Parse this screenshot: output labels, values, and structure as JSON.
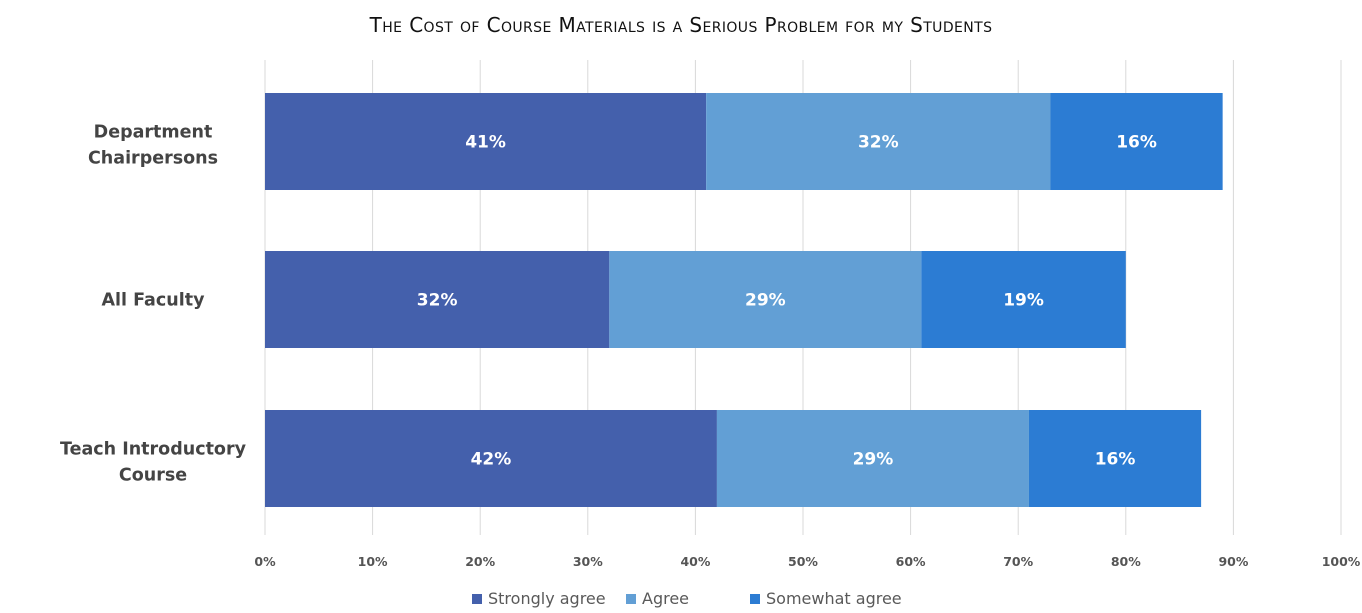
{
  "chart_data": {
    "type": "bar",
    "orientation": "horizontal",
    "stacked": true,
    "title": "The Cost of Course Materials is a Serious Problem for my Students",
    "categories": [
      "Department Chairpersons",
      "All Faculty",
      "Teach Introductory Course"
    ],
    "series": [
      {
        "name": "Strongly agree",
        "values": [
          41,
          32,
          42
        ],
        "labels": [
          "41%",
          "32%",
          "42%"
        ],
        "color": "#4460AC"
      },
      {
        "name": "Agree",
        "values": [
          32,
          29,
          29
        ],
        "labels": [
          "32%",
          "29%",
          "29%"
        ],
        "color": "#629FD5"
      },
      {
        "name": "Somewhat agree",
        "values": [
          16,
          19,
          16
        ],
        "labels": [
          "16%",
          "19%",
          "16%"
        ],
        "color": "#2C7CD3"
      }
    ],
    "xlim": [
      0,
      100
    ],
    "x_ticks": [
      "0%",
      "10%",
      "20%",
      "30%",
      "40%",
      "50%",
      "60%",
      "70%",
      "80%",
      "90%",
      "100%"
    ],
    "xlabel": "",
    "ylabel": "",
    "grid": true,
    "legend_position": "bottom"
  }
}
